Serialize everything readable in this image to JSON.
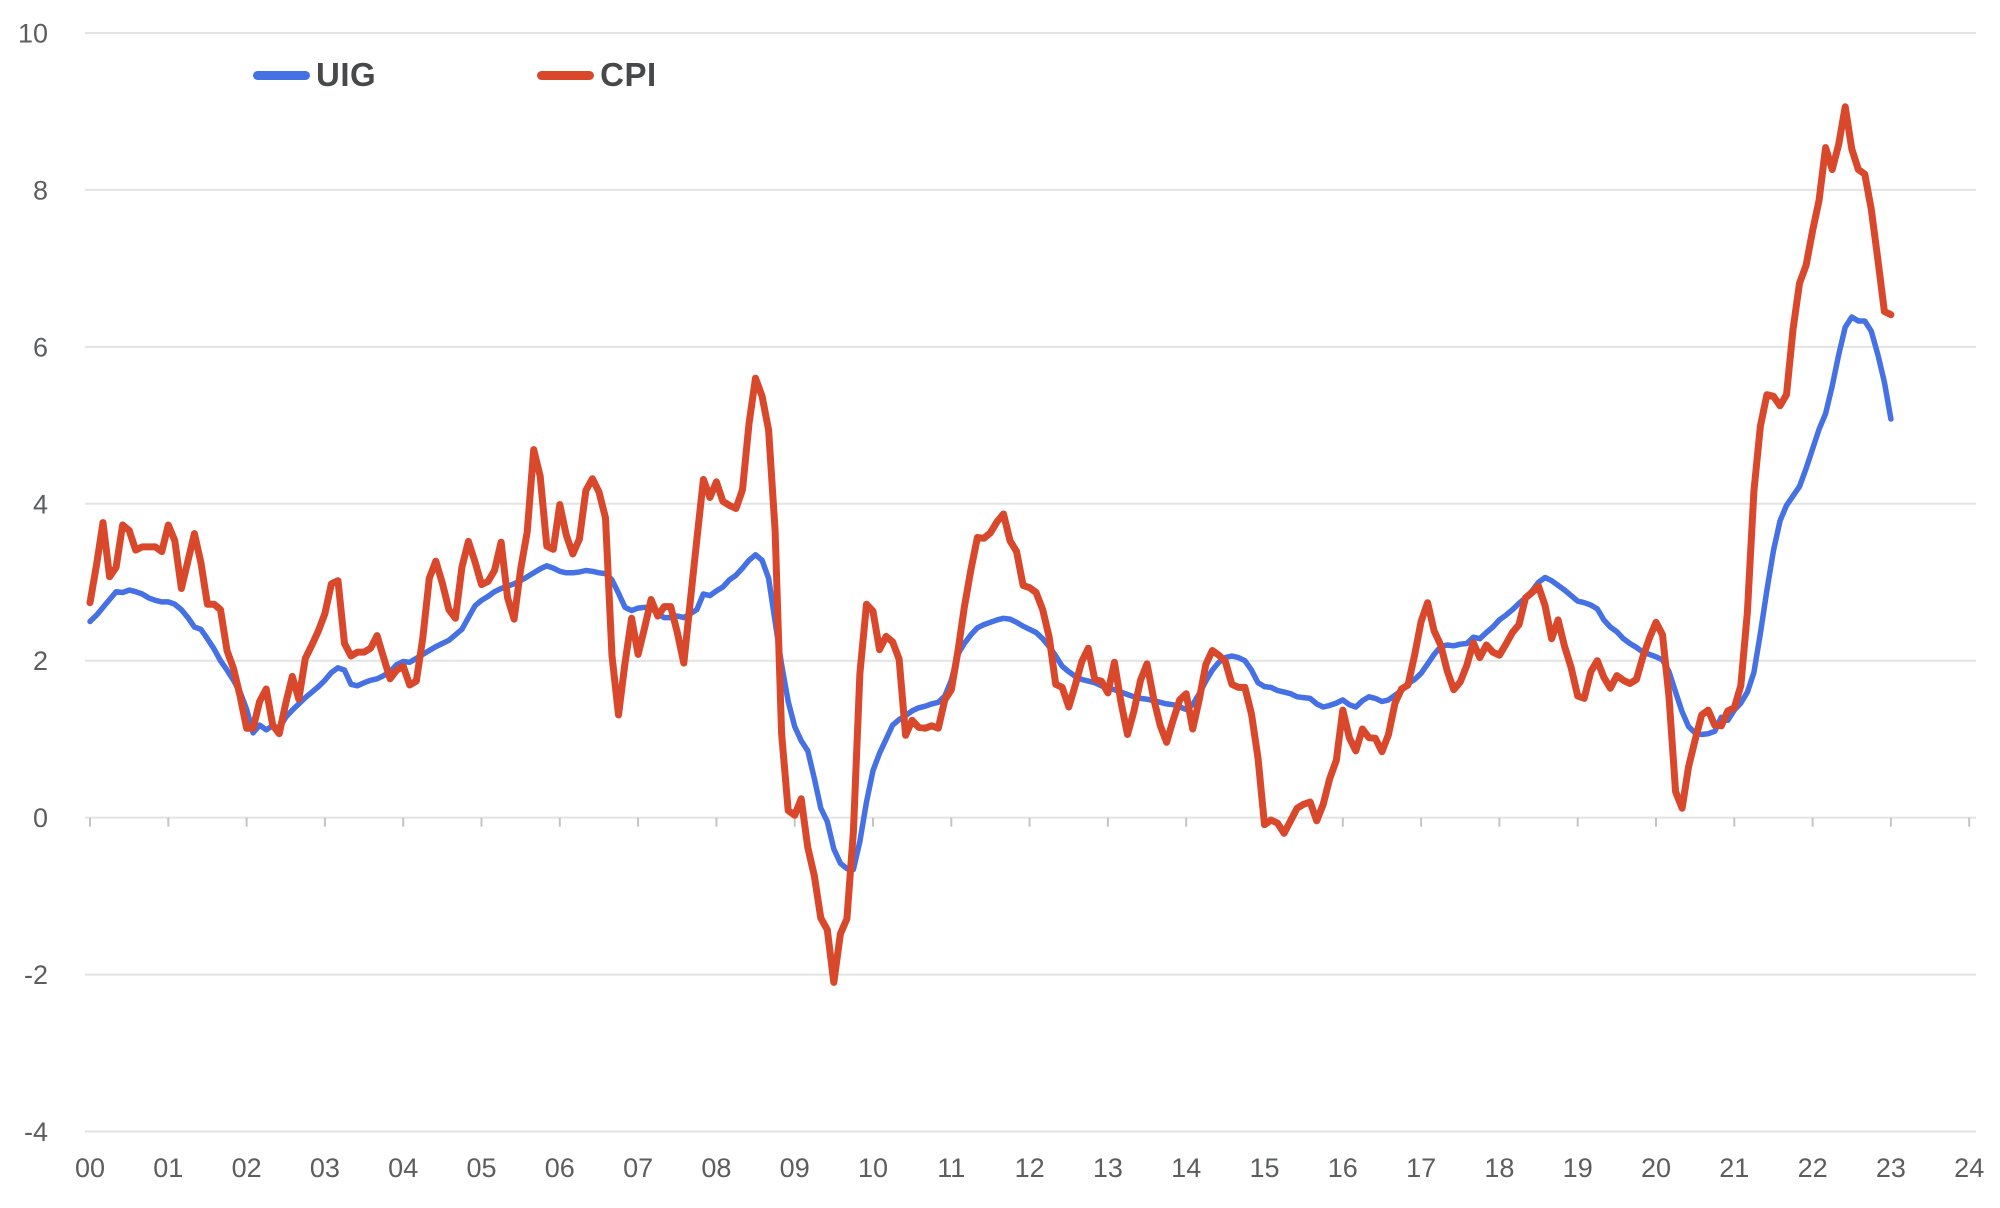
{
  "chart_data": {
    "type": "line",
    "title": "",
    "xlabel": "",
    "ylabel": "",
    "grid": "horizontal",
    "legend_position": "top-left",
    "background_color": "#ffffff",
    "gridline_color": "#e3e3e3",
    "axis_label_color": "#5b5d5f",
    "legend_text_color": "#474849",
    "x_axis": {
      "labels": [
        "00",
        "01",
        "02",
        "03",
        "04",
        "05",
        "06",
        "07",
        "08",
        "09",
        "10",
        "11",
        "12",
        "13",
        "14",
        "15",
        "16",
        "17",
        "18",
        "19",
        "20",
        "21",
        "22",
        "23",
        "24"
      ],
      "start": "Jan 2000",
      "end_of_data": "Jan 2023",
      "frequency": "monthly"
    },
    "y_axis": {
      "min": -4,
      "max": 10,
      "tick_step": 2,
      "ticks": [
        10,
        8,
        6,
        4,
        2,
        0,
        -2,
        -4
      ]
    },
    "series": [
      {
        "name": "UIG",
        "color": "#4671e5",
        "values": [
          2.5,
          2.58,
          2.68,
          2.78,
          2.88,
          2.87,
          2.9,
          2.88,
          2.85,
          2.8,
          2.77,
          2.75,
          2.75,
          2.72,
          2.65,
          2.55,
          2.43,
          2.4,
          2.28,
          2.15,
          2.0,
          1.88,
          1.75,
          1.6,
          1.38,
          1.08,
          1.18,
          1.12,
          1.17,
          1.14,
          1.28,
          1.37,
          1.45,
          1.53,
          1.6,
          1.67,
          1.75,
          1.85,
          1.91,
          1.88,
          1.7,
          1.68,
          1.72,
          1.75,
          1.77,
          1.81,
          1.86,
          1.95,
          1.99,
          1.98,
          2.03,
          2.08,
          2.13,
          2.18,
          2.22,
          2.26,
          2.33,
          2.4,
          2.55,
          2.7,
          2.77,
          2.82,
          2.88,
          2.92,
          2.95,
          2.98,
          3.02,
          3.07,
          3.12,
          3.17,
          3.21,
          3.18,
          3.14,
          3.12,
          3.12,
          3.13,
          3.15,
          3.14,
          3.12,
          3.11,
          3.03,
          2.86,
          2.68,
          2.64,
          2.67,
          2.68,
          2.67,
          2.6,
          2.55,
          2.55,
          2.57,
          2.55,
          2.6,
          2.65,
          2.85,
          2.83,
          2.89,
          2.94,
          3.03,
          3.09,
          3.18,
          3.28,
          3.35,
          3.28,
          3.05,
          2.5,
          1.95,
          1.48,
          1.16,
          0.98,
          0.85,
          0.5,
          0.12,
          -0.05,
          -0.4,
          -0.58,
          -0.65,
          -0.66,
          -0.3,
          0.2,
          0.6,
          0.82,
          1.0,
          1.18,
          1.25,
          1.3,
          1.36,
          1.4,
          1.42,
          1.45,
          1.47,
          1.55,
          1.75,
          2.08,
          2.22,
          2.33,
          2.42,
          2.46,
          2.49,
          2.52,
          2.54,
          2.53,
          2.49,
          2.44,
          2.4,
          2.36,
          2.28,
          2.18,
          2.06,
          1.93,
          1.86,
          1.8,
          1.76,
          1.74,
          1.72,
          1.68,
          1.65,
          1.63,
          1.6,
          1.57,
          1.54,
          1.52,
          1.51,
          1.49,
          1.47,
          1.45,
          1.44,
          1.41,
          1.38,
          1.44,
          1.58,
          1.74,
          1.88,
          1.98,
          2.04,
          2.06,
          2.04,
          2.0,
          1.88,
          1.72,
          1.67,
          1.66,
          1.62,
          1.6,
          1.58,
          1.54,
          1.53,
          1.52,
          1.45,
          1.41,
          1.43,
          1.46,
          1.5,
          1.44,
          1.41,
          1.49,
          1.54,
          1.52,
          1.48,
          1.5,
          1.56,
          1.62,
          1.71,
          1.76,
          1.84,
          1.96,
          2.08,
          2.18,
          2.2,
          2.19,
          2.21,
          2.22,
          2.3,
          2.28,
          2.36,
          2.43,
          2.52,
          2.58,
          2.65,
          2.73,
          2.8,
          2.89,
          3.0,
          3.06,
          3.02,
          2.96,
          2.9,
          2.83,
          2.76,
          2.74,
          2.71,
          2.66,
          2.52,
          2.43,
          2.37,
          2.28,
          2.22,
          2.17,
          2.11,
          2.08,
          2.05,
          2.01,
          1.86,
          1.6,
          1.35,
          1.16,
          1.08,
          1.06,
          1.07,
          1.1,
          1.28,
          1.24,
          1.37,
          1.46,
          1.6,
          1.85,
          2.35,
          2.9,
          3.4,
          3.78,
          3.98,
          4.1,
          4.22,
          4.45,
          4.7,
          4.95,
          5.15,
          5.5,
          5.9,
          6.25,
          6.38,
          6.33,
          6.33,
          6.2,
          5.9,
          5.55,
          5.08
        ]
      },
      {
        "name": "CPI",
        "color": "#d9482b",
        "values": [
          2.74,
          3.22,
          3.76,
          3.07,
          3.19,
          3.73,
          3.66,
          3.41,
          3.45,
          3.45,
          3.45,
          3.39,
          3.73,
          3.53,
          2.92,
          3.27,
          3.62,
          3.25,
          2.72,
          2.72,
          2.65,
          2.13,
          1.9,
          1.55,
          1.14,
          1.14,
          1.48,
          1.64,
          1.18,
          1.07,
          1.46,
          1.8,
          1.51,
          2.03,
          2.2,
          2.38,
          2.6,
          2.98,
          3.02,
          2.22,
          2.06,
          2.11,
          2.11,
          2.16,
          2.32,
          2.04,
          1.77,
          1.88,
          1.93,
          1.69,
          1.74,
          2.29,
          3.05,
          3.27,
          2.99,
          2.65,
          2.54,
          3.19,
          3.52,
          3.26,
          2.97,
          3.01,
          3.15,
          3.51,
          2.8,
          2.53,
          3.17,
          3.64,
          4.69,
          4.35,
          3.46,
          3.42,
          3.99,
          3.6,
          3.36,
          3.55,
          4.17,
          4.32,
          4.15,
          3.82,
          2.06,
          1.31,
          1.97,
          2.54,
          2.08,
          2.42,
          2.78,
          2.57,
          2.69,
          2.69,
          2.36,
          1.97,
          2.76,
          3.54,
          4.31,
          4.08,
          4.28,
          4.03,
          3.98,
          3.94,
          4.18,
          5.02,
          5.6,
          5.37,
          4.94,
          3.66,
          1.07,
          0.09,
          0.03,
          0.24,
          -0.38,
          -0.74,
          -1.28,
          -1.43,
          -2.1,
          -1.48,
          -1.29,
          -0.18,
          1.84,
          2.72,
          2.63,
          2.14,
          2.31,
          2.24,
          2.02,
          1.05,
          1.24,
          1.15,
          1.14,
          1.17,
          1.14,
          1.5,
          1.63,
          2.11,
          2.68,
          3.16,
          3.57,
          3.56,
          3.63,
          3.77,
          3.87,
          3.53,
          3.39,
          2.96,
          2.93,
          2.87,
          2.65,
          2.3,
          1.7,
          1.66,
          1.41,
          1.69,
          1.99,
          2.16,
          1.76,
          1.74,
          1.59,
          1.98,
          1.47,
          1.06,
          1.36,
          1.75,
          1.96,
          1.52,
          1.18,
          0.96,
          1.24,
          1.5,
          1.58,
          1.13,
          1.51,
          1.95,
          2.13,
          2.07,
          1.99,
          1.7,
          1.66,
          1.66,
          1.32,
          0.76,
          -0.09,
          -0.03,
          -0.07,
          -0.2,
          -0.04,
          0.12,
          0.17,
          0.2,
          -0.04,
          0.17,
          0.5,
          0.73,
          1.37,
          1.02,
          0.85,
          1.13,
          1.02,
          1.01,
          0.84,
          1.06,
          1.46,
          1.64,
          1.69,
          2.07,
          2.5,
          2.74,
          2.38,
          2.2,
          1.87,
          1.63,
          1.73,
          1.94,
          2.23,
          2.04,
          2.2,
          2.11,
          2.07,
          2.21,
          2.36,
          2.46,
          2.8,
          2.87,
          2.95,
          2.7,
          2.28,
          2.52,
          2.18,
          1.91,
          1.55,
          1.52,
          1.86,
          2.0,
          1.79,
          1.65,
          1.81,
          1.75,
          1.71,
          1.76,
          2.05,
          2.29,
          2.49,
          2.33,
          1.54,
          0.33,
          0.12,
          0.65,
          0.99,
          1.31,
          1.37,
          1.18,
          1.17,
          1.36,
          1.4,
          1.68,
          2.62,
          4.16,
          4.99,
          5.39,
          5.37,
          5.25,
          5.39,
          6.22,
          6.81,
          7.04,
          7.48,
          7.87,
          8.54,
          8.26,
          8.58,
          9.06,
          8.52,
          8.26,
          8.2,
          7.75,
          7.11,
          6.45,
          6.41
        ]
      }
    ]
  }
}
